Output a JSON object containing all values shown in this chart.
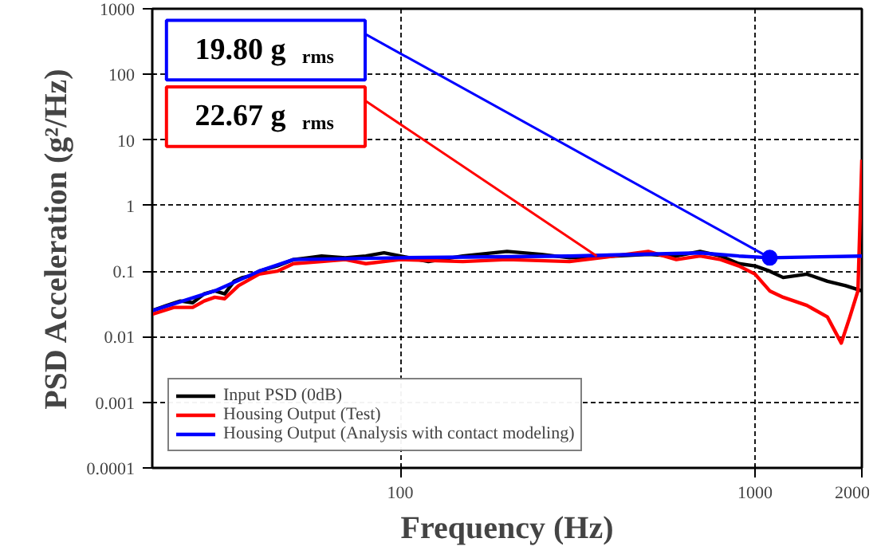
{
  "chart_data": {
    "type": "line",
    "xlabel": "Frequency (Hz)",
    "ylabel": "PSD Acceleration (g²/Hz)",
    "log": "xy",
    "xlim": [
      20,
      2000
    ],
    "ylim": [
      0.0001,
      1000
    ],
    "xticks": [
      100,
      1000,
      2000
    ],
    "yticks": [
      {
        "value": 0.0001,
        "label": "0.0001"
      },
      {
        "value": 0.001,
        "label": "0.001"
      },
      {
        "value": 0.01,
        "label": "0.01"
      },
      {
        "value": 0.1,
        "label": "0.1"
      },
      1,
      10,
      100,
      1000
    ],
    "grid": true,
    "legend": "bottom left",
    "line_style": "solid",
    "series": [
      {
        "name": "Input PSD (0dB)",
        "color": "#000000",
        "x": [
          20,
          22,
          24,
          26,
          28,
          30,
          32,
          34,
          36,
          38,
          40,
          45,
          50,
          55,
          60,
          70,
          80,
          90,
          100,
          120,
          150,
          200,
          250,
          300,
          400,
          500,
          600,
          700,
          800,
          900,
          1000,
          1100,
          1200,
          1400,
          1600,
          1800,
          2000
        ],
        "values": [
          0.025,
          0.03,
          0.035,
          0.033,
          0.045,
          0.05,
          0.045,
          0.07,
          0.08,
          0.085,
          0.1,
          0.12,
          0.15,
          0.16,
          0.17,
          0.16,
          0.17,
          0.19,
          0.17,
          0.14,
          0.17,
          0.2,
          0.18,
          0.16,
          0.17,
          0.18,
          0.17,
          0.2,
          0.17,
          0.13,
          0.12,
          0.1,
          0.08,
          0.09,
          0.07,
          0.06,
          0.05
        ]
      },
      {
        "name": "Housing Output (Test)",
        "color": "#ff0000",
        "x": [
          20,
          23,
          26,
          28,
          30,
          32,
          35,
          40,
          45,
          50,
          60,
          70,
          80,
          100,
          150,
          200,
          300,
          400,
          500,
          600,
          700,
          800,
          900,
          1000,
          1100,
          1200,
          1400,
          1600,
          1750,
          1850,
          1950,
          2000
        ],
        "values": [
          0.022,
          0.028,
          0.028,
          0.035,
          0.04,
          0.038,
          0.06,
          0.09,
          0.1,
          0.13,
          0.14,
          0.15,
          0.13,
          0.15,
          0.14,
          0.15,
          0.14,
          0.17,
          0.2,
          0.15,
          0.17,
          0.15,
          0.12,
          0.09,
          0.05,
          0.04,
          0.03,
          0.02,
          0.008,
          0.02,
          0.05,
          5
        ]
      },
      {
        "name": "Housing Output (Analysis with contact modeling)",
        "color": "#0000ff",
        "x": [
          20,
          30,
          40,
          50,
          100,
          300,
          700,
          900,
          1100,
          2000
        ],
        "values": [
          0.025,
          0.05,
          0.1,
          0.15,
          0.16,
          0.17,
          0.19,
          0.17,
          0.16,
          0.17
        ]
      },
      {
        "type": "scatter",
        "marker": "circle",
        "color": "#0000ff",
        "x": [
          1100
        ],
        "values": [
          0.16
        ]
      }
    ],
    "annotations": [
      {
        "text": "19.80 g$_{rms}$",
        "x": 1100,
        "y": 0.16
      },
      {
        "text": "22.67 g$_{rms}$",
        "x": 358,
        "y": 0.17
      }
    ]
  }
}
